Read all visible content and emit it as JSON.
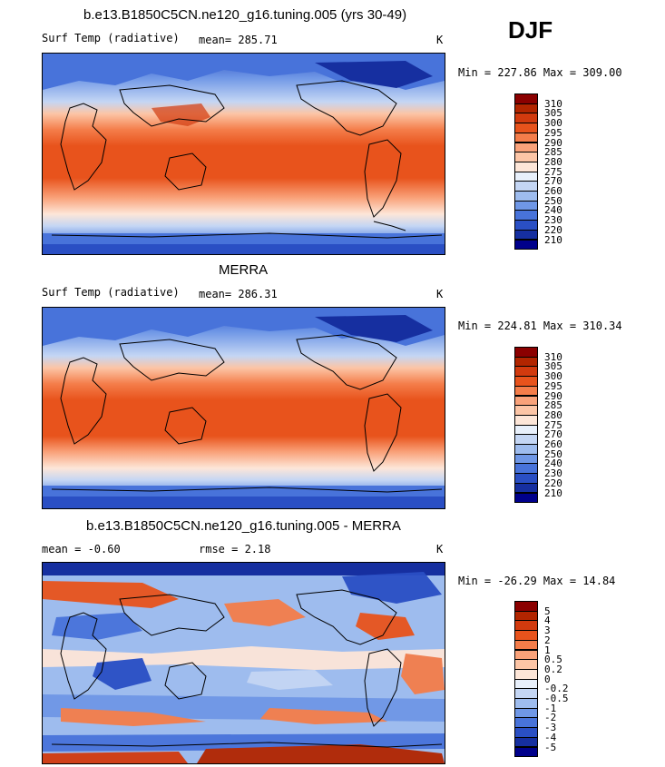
{
  "season": "DJF",
  "panels": [
    {
      "id": "model",
      "title": "b.e13.B1850C5CN.ne120_g16.tuning.005 (yrs 30-49)",
      "left_label": "Surf Temp (radiative)",
      "mean_text": "mean= 285.71",
      "unit": "K",
      "minmax": "Min = 227.86 Max = 309.00",
      "colorbar": {
        "labels": [
          "310",
          "305",
          "300",
          "295",
          "290",
          "285",
          "280",
          "275",
          "270",
          "260",
          "250",
          "240",
          "230",
          "220",
          "210"
        ],
        "colors": [
          "#8b0000",
          "#b22500",
          "#d23a0e",
          "#e8531c",
          "#f47d4a",
          "#f9a27a",
          "#fcc5a6",
          "#fde6d8",
          "#e8f0fb",
          "#c4d6f4",
          "#9ebcee",
          "#6f97e6",
          "#4873da",
          "#2a4fc4",
          "#162fa0",
          "#00008b"
        ]
      }
    },
    {
      "id": "obs",
      "title": "MERRA",
      "left_label": "Surf Temp (radiative)",
      "mean_text": "mean= 286.31",
      "unit": "K",
      "minmax": "Min = 224.81 Max = 310.34",
      "colorbar": {
        "labels": [
          "310",
          "305",
          "300",
          "295",
          "290",
          "285",
          "280",
          "275",
          "270",
          "260",
          "250",
          "240",
          "230",
          "220",
          "210"
        ],
        "colors": [
          "#8b0000",
          "#b22500",
          "#d23a0e",
          "#e8531c",
          "#f47d4a",
          "#f9a27a",
          "#fcc5a6",
          "#fde6d8",
          "#e8f0fb",
          "#c4d6f4",
          "#9ebcee",
          "#6f97e6",
          "#4873da",
          "#2a4fc4",
          "#162fa0",
          "#00008b"
        ]
      }
    },
    {
      "id": "diff",
      "title": "b.e13.B1850C5CN.ne120_g16.tuning.005 - MERRA",
      "left_label": "mean =  -0.60",
      "mean_text": "rmse =   2.18",
      "unit": "K",
      "minmax": "Min = -26.29 Max =  14.84",
      "colorbar": {
        "labels": [
          "5",
          "4",
          "3",
          "2",
          "1",
          "0.5",
          "0.2",
          "0",
          "-0.2",
          "-0.5",
          "-1",
          "-2",
          "-3",
          "-4",
          "-5"
        ],
        "colors": [
          "#8b0000",
          "#b22500",
          "#d23a0e",
          "#e8531c",
          "#f47d4a",
          "#f9a27a",
          "#fcc5a6",
          "#fde6d8",
          "#e8f0fb",
          "#c4d6f4",
          "#9ebcee",
          "#6f97e6",
          "#4873da",
          "#2a4fc4",
          "#162fa0",
          "#00008b"
        ]
      }
    }
  ]
}
